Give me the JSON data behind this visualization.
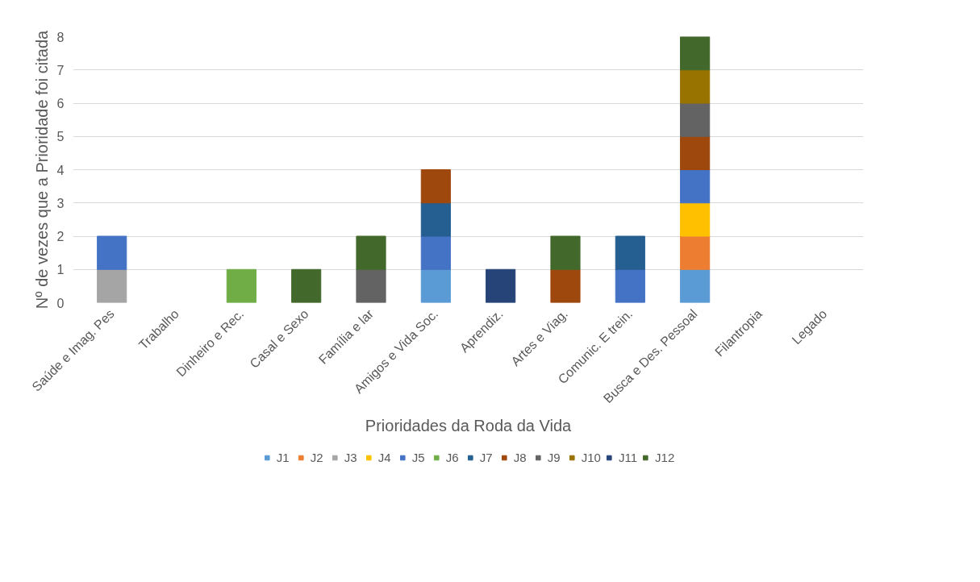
{
  "chart_data": {
    "type": "bar",
    "stacked": true,
    "xlabel": "Prioridades da Roda da Vida",
    "ylabel": "Nº de vezes que a Prioridade foi citada",
    "categories": [
      "Saúde e Imag. Pes",
      "Trabalho",
      "Dinheiro e Rec.",
      "Casal e Sexo",
      "Família e lar",
      "Amigos e Vida Soc.",
      "Aprendiz.",
      "Artes e Viag.",
      "Comunic. E trein.",
      "Busca e Des. Pessoal",
      "Filantropia",
      "Legado"
    ],
    "ylim": [
      0,
      8
    ],
    "yticks": [
      0,
      1,
      2,
      3,
      4,
      5,
      6,
      7,
      8
    ],
    "grid": "y",
    "legend": "bottom",
    "series": [
      {
        "name": "J1",
        "color": "#5b9bd5",
        "values": [
          null,
          null,
          null,
          null,
          null,
          1,
          null,
          null,
          null,
          1,
          null,
          null
        ]
      },
      {
        "name": "J2",
        "color": "#ed7d31",
        "values": [
          null,
          null,
          null,
          null,
          null,
          null,
          null,
          null,
          null,
          1,
          null,
          null
        ]
      },
      {
        "name": "J3",
        "color": "#a5a5a5",
        "values": [
          1,
          null,
          null,
          null,
          null,
          null,
          null,
          null,
          null,
          null,
          null,
          null
        ]
      },
      {
        "name": "J4",
        "color": "#ffc000",
        "values": [
          null,
          null,
          null,
          null,
          null,
          null,
          null,
          null,
          null,
          1,
          null,
          null
        ]
      },
      {
        "name": "J5",
        "color": "#4472c4",
        "values": [
          1,
          null,
          null,
          null,
          null,
          1,
          null,
          null,
          1,
          1,
          null,
          null
        ]
      },
      {
        "name": "J6",
        "color": "#70ad47",
        "values": [
          null,
          null,
          1,
          null,
          null,
          null,
          null,
          null,
          null,
          null,
          null,
          null
        ]
      },
      {
        "name": "J7",
        "color": "#255e91",
        "values": [
          null,
          null,
          null,
          null,
          null,
          1,
          null,
          null,
          1,
          null,
          null,
          null
        ]
      },
      {
        "name": "J8",
        "color": "#9e480e",
        "values": [
          null,
          null,
          null,
          null,
          null,
          1,
          null,
          1,
          null,
          1,
          null,
          null
        ]
      },
      {
        "name": "J9",
        "color": "#636363",
        "values": [
          null,
          null,
          null,
          null,
          1,
          null,
          null,
          null,
          null,
          1,
          null,
          null
        ]
      },
      {
        "name": "J10",
        "color": "#997300",
        "values": [
          null,
          null,
          null,
          null,
          null,
          null,
          null,
          null,
          null,
          1,
          null,
          null
        ]
      },
      {
        "name": "J11",
        "color": "#264478",
        "values": [
          null,
          null,
          null,
          null,
          null,
          null,
          1,
          null,
          null,
          null,
          null,
          null
        ]
      },
      {
        "name": "J12",
        "color": "#43682b",
        "values": [
          null,
          null,
          null,
          1,
          1,
          null,
          null,
          1,
          null,
          1,
          null,
          null
        ]
      }
    ]
  }
}
